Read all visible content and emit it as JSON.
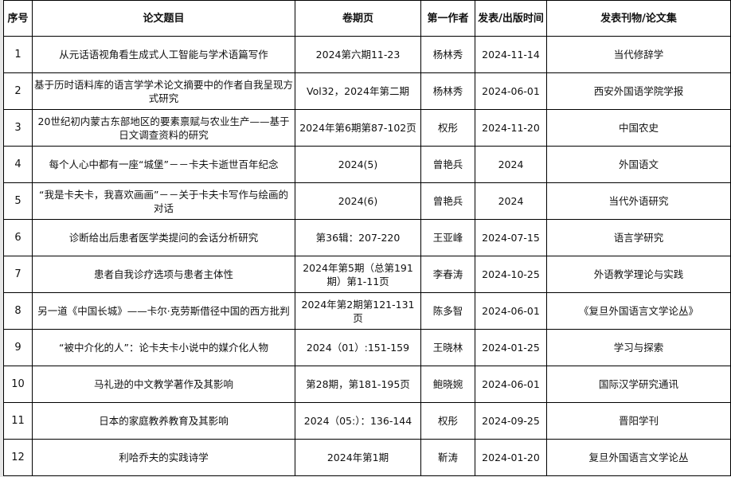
{
  "table": {
    "headers": [
      "序号",
      "论文题目",
      "卷期页",
      "第一作者",
      "发表/出版时间",
      "发表刊物/论文集"
    ],
    "rows": [
      [
        "1",
        "从元话语视角看生成式人工智能与学术语篇写作",
        "2024第六期11-23",
        "杨林秀",
        "2024-11-14",
        "当代修辞学"
      ],
      [
        "2",
        "基于历时语料库的语言学学术论文摘要中的作者自我呈现方式研究",
        "Vol32，2024年第二期",
        "杨林秀",
        "2024-06-01",
        "西安外国语学院学报"
      ],
      [
        "3",
        "20世纪初内蒙古东部地区的要素禀赋与农业生产——基于日文调查资料的研究",
        "2024年第6期第87-102页",
        "权彤",
        "2024-11-20",
        "中国农史"
      ],
      [
        "4",
        "每个人心中都有一座“城堡”－－卡夫卡逝世百年纪念",
        "2024(5)",
        "曾艳兵",
        "2024",
        "外国语文"
      ],
      [
        "5",
        "“我是卡夫卡，我喜欢画画”－－关于卡夫卡写作与绘画的对话",
        "2024(6)",
        "曾艳兵",
        "2024",
        "当代外语研究"
      ],
      [
        "6",
        "诊断给出后患者医学类提问的会话分析研究",
        "第36辑：207-220",
        "王亚峰",
        "2024-07-15",
        "语言学研究"
      ],
      [
        "7",
        "患者自我诊疗选项与患者主体性",
        "2024年第5期（总第191期）第1-11页",
        "李春涛",
        "2024-10-25",
        "外语教学理论与实践"
      ],
      [
        "8",
        "另一道《中国长城》——卡尔·克劳斯借径中国的西方批判",
        "2024年第2期第121-131页",
        "陈多智",
        "2024-06-01",
        "《复旦外国语言文学论丛》"
      ],
      [
        "9",
        "“被中介化的人”：论卡夫卡小说中的媒介化人物",
        "2024（01）:151-159",
        "王晓林",
        "2024-01-25",
        "学习与探索"
      ],
      [
        "10",
        "马礼逊的中文教学著作及其影响",
        "第28期，第181-195页",
        "鲍晓婉",
        "2024-06-01",
        "国际汉学研究通讯"
      ],
      [
        "11",
        "日本的家庭教养教育及其影响",
        "2024（05:）：136-144",
        "权彤",
        "2024-09-25",
        "晋阳学刊"
      ],
      [
        "12",
        "利哈乔夫的实践诗学",
        "2024年第1期",
        "靳涛",
        "2024-01-20",
        "复旦外国语言文学论丛"
      ]
    ]
  }
}
